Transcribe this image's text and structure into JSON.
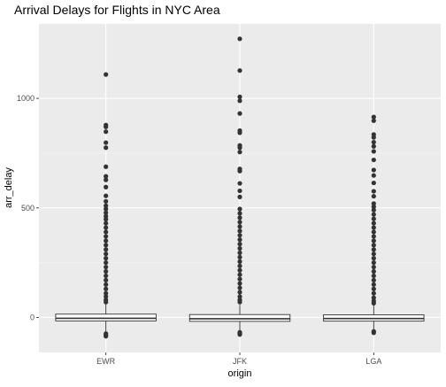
{
  "chart_data": {
    "type": "box",
    "title": "Arrival Delays for Flights in NYC Area",
    "xlabel": "origin",
    "ylabel": "arr_delay",
    "ylim": [
      -160,
      1340
    ],
    "yticks": [
      0,
      500,
      1000
    ],
    "grid": true,
    "categories": [
      "EWR",
      "JFK",
      "LGA"
    ],
    "boxes": [
      {
        "category": "EWR",
        "q1": -16,
        "median": -4,
        "q3": 15,
        "whisker_low": -70,
        "whisker_high": 60
      },
      {
        "category": "JFK",
        "q1": -18,
        "median": -6,
        "q3": 13,
        "whisker_low": -65,
        "whisker_high": 58
      },
      {
        "category": "LGA",
        "q1": -17,
        "median": -5,
        "q3": 12,
        "whisker_low": -62,
        "whisker_high": 55
      }
    ],
    "outliers": [
      {
        "category": "EWR",
        "values": [
          1109,
          878,
          870,
          848,
          798,
          775,
          688,
          644,
          628,
          595,
          555,
          530,
          510,
          495,
          478,
          462,
          448,
          430,
          410,
          390,
          370,
          350,
          330,
          310,
          290,
          270,
          250,
          230,
          210,
          190,
          170,
          150,
          130,
          110,
          95,
          80,
          70,
          -74,
          -80,
          -86
        ]
      },
      {
        "category": "JFK",
        "values": [
          1272,
          1127,
          1007,
          989,
          931,
          853,
          843,
          785,
          775,
          755,
          678,
          668,
          612,
          578,
          550,
          495,
          475,
          455,
          435,
          415,
          395,
          375,
          355,
          335,
          315,
          295,
          275,
          255,
          235,
          215,
          195,
          175,
          155,
          135,
          115,
          95,
          80,
          70,
          -68,
          -74,
          -78
        ]
      },
      {
        "category": "LGA",
        "values": [
          915,
          898,
          835,
          822,
          800,
          781,
          758,
          719,
          673,
          648,
          614,
          576,
          553,
          520,
          505,
          490,
          470,
          450,
          430,
          410,
          390,
          370,
          350,
          330,
          310,
          290,
          270,
          250,
          230,
          210,
          190,
          170,
          150,
          130,
          110,
          90,
          75,
          65,
          -64,
          -70
        ]
      }
    ]
  }
}
